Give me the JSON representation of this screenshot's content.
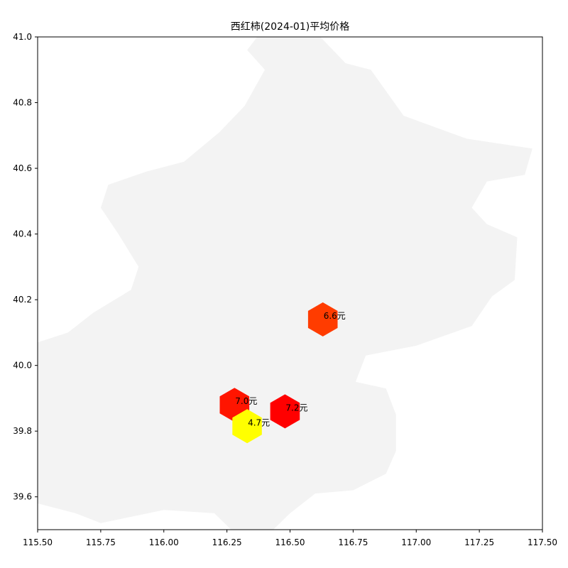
{
  "chart_data": {
    "type": "scatter",
    "title": "西红柿(2024-01)平均价格",
    "xlim": [
      115.5,
      117.5
    ],
    "ylim": [
      39.5,
      41.0
    ],
    "x_ticks": [
      115.5,
      115.75,
      116.0,
      116.25,
      116.5,
      116.75,
      117.0,
      117.25,
      117.5
    ],
    "x_tick_labels": [
      "115.50",
      "115.75",
      "116.00",
      "116.25",
      "116.50",
      "116.75",
      "117.00",
      "117.25",
      "117.50"
    ],
    "y_ticks": [
      39.6,
      39.8,
      40.0,
      40.2,
      40.4,
      40.6,
      40.8,
      41.0
    ],
    "y_tick_labels": [
      "39.6",
      "39.8",
      "40.0",
      "40.2",
      "40.4",
      "40.6",
      "40.8",
      "41.0"
    ],
    "grid": false,
    "points": [
      {
        "lon": 116.63,
        "lat": 40.14,
        "value": 6.6,
        "label": "6.6元",
        "color": "#ff3c00"
      },
      {
        "lon": 116.28,
        "lat": 39.88,
        "value": 7.0,
        "label": "7.0元",
        "color": "#ff1500"
      },
      {
        "lon": 116.48,
        "lat": 39.86,
        "value": 7.2,
        "label": "7.2元",
        "color": "#ff0000"
      },
      {
        "lon": 116.33,
        "lat": 39.815,
        "value": 4.7,
        "label": "4.7元",
        "color": "#ffff00"
      }
    ],
    "background_region_color": "#f3f3f3",
    "background_region_polygon": [
      [
        116.52,
        41.06
      ],
      [
        116.62,
        41.0
      ],
      [
        116.72,
        40.92
      ],
      [
        116.82,
        40.9
      ],
      [
        116.95,
        40.76
      ],
      [
        117.2,
        40.69
      ],
      [
        117.46,
        40.66
      ],
      [
        117.43,
        40.58
      ],
      [
        117.28,
        40.56
      ],
      [
        117.22,
        40.48
      ],
      [
        117.28,
        40.43
      ],
      [
        117.4,
        40.39
      ],
      [
        117.39,
        40.26
      ],
      [
        117.3,
        40.21
      ],
      [
        117.22,
        40.12
      ],
      [
        117.0,
        40.06
      ],
      [
        116.8,
        40.03
      ],
      [
        116.76,
        39.95
      ],
      [
        116.88,
        39.93
      ],
      [
        116.92,
        39.85
      ],
      [
        116.92,
        39.74
      ],
      [
        116.88,
        39.67
      ],
      [
        116.75,
        39.62
      ],
      [
        116.6,
        39.61
      ],
      [
        116.5,
        39.55
      ],
      [
        116.42,
        39.49
      ],
      [
        116.28,
        39.49
      ],
      [
        116.2,
        39.55
      ],
      [
        116.0,
        39.56
      ],
      [
        115.75,
        39.52
      ],
      [
        115.65,
        39.55
      ],
      [
        115.5,
        39.58
      ],
      [
        115.5,
        40.07
      ],
      [
        115.62,
        40.1
      ],
      [
        115.72,
        40.16
      ],
      [
        115.87,
        40.23
      ],
      [
        115.9,
        40.3
      ],
      [
        115.82,
        40.4
      ],
      [
        115.75,
        40.48
      ],
      [
        115.78,
        40.55
      ],
      [
        115.93,
        40.59
      ],
      [
        116.08,
        40.62
      ],
      [
        116.22,
        40.71
      ],
      [
        116.32,
        40.79
      ],
      [
        116.4,
        40.9
      ],
      [
        116.33,
        40.96
      ],
      [
        116.37,
        41.0
      ],
      [
        116.45,
        41.06
      ]
    ]
  }
}
